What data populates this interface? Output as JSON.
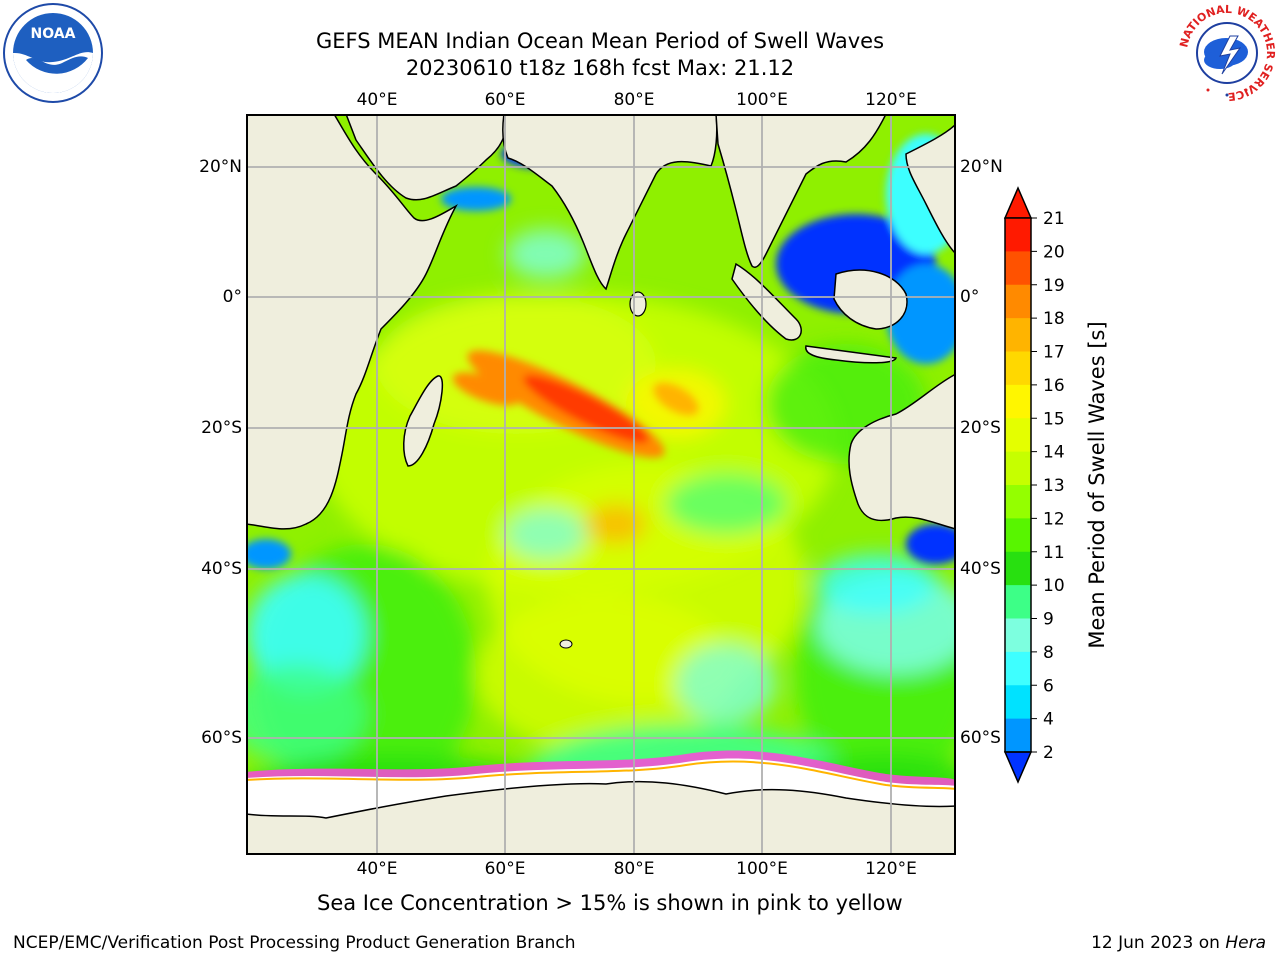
{
  "title": {
    "line1": "GEFS MEAN Indian Ocean Mean Period of Swell Waves",
    "line2": "20230610 t18z 168h fcst   Max: 21.12"
  },
  "map": {
    "lon_ticks": [
      "40°E",
      "60°E",
      "80°E",
      "100°E",
      "120°E"
    ],
    "lat_ticks": [
      "20°N",
      "0°",
      "20°S",
      "40°S",
      "60°S"
    ],
    "colors": {
      "land": "#efeedd",
      "ice": "#ffffff",
      "grid": "#b0b0b0",
      "ice_edge": "#ff44dd"
    }
  },
  "colorbar": {
    "label": "Mean Period of Swell Waves [s]",
    "ticks": [
      "21",
      "20",
      "19",
      "18",
      "17",
      "16",
      "15",
      "14",
      "13",
      "12",
      "11",
      "10",
      "9",
      "8",
      "6",
      "4",
      "2"
    ],
    "colors": [
      "#ff1a00",
      "#ff5200",
      "#ff8a00",
      "#ffb400",
      "#ffd800",
      "#fff600",
      "#e4ff00",
      "#c6ff00",
      "#94ff00",
      "#58f500",
      "#28e010",
      "#3dff87",
      "#7dffdf",
      "#3effff",
      "#00e2ff",
      "#0096ff",
      "#0033ff"
    ]
  },
  "footnote": "Sea Ice Concentration > 15% is shown in pink to yellow",
  "credits": {
    "left": "NCEP/EMC/Verification Post Processing Product Generation Branch",
    "right_date": "12 Jun 2023 on ",
    "right_host": "Hera"
  },
  "logos": {
    "noaa": "NOAA",
    "nws_ring": "NATIONAL WEATHER SERVICE"
  }
}
